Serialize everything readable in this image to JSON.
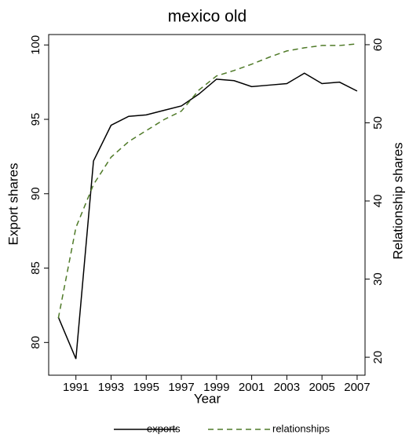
{
  "chart_data": {
    "type": "line",
    "title": "mexico old",
    "x_label": "Year",
    "y_label": "Export shares",
    "y2_label": "Relationship shares",
    "x": [
      1990,
      1991,
      1992,
      1993,
      1994,
      1995,
      1996,
      1997,
      1998,
      1999,
      2000,
      2001,
      2002,
      2003,
      2004,
      2005,
      2006,
      2007
    ],
    "xlim": [
      1989.45,
      2007.45
    ],
    "xticks": [
      1991,
      1993,
      1995,
      1997,
      1999,
      2001,
      2003,
      2005,
      2007
    ],
    "ylim": [
      77.8,
      100.7
    ],
    "yticks": [
      80,
      85,
      90,
      95,
      100
    ],
    "y2lim": [
      17.7,
      61.3
    ],
    "y2ticks": [
      20,
      30,
      40,
      50,
      60
    ],
    "legend": "bottom",
    "series": [
      {
        "name": "exports",
        "color": "#000000",
        "dash": "solid",
        "values": [
          81.7,
          78.9,
          92.2,
          94.6,
          95.2,
          95.3,
          95.6,
          95.9,
          96.7,
          97.7,
          97.6,
          97.2,
          97.3,
          97.4,
          98.1,
          97.4,
          97.5,
          96.9
        ]
      },
      {
        "name": "relationships",
        "color": "#4f7a28",
        "dash": "dashed",
        "axis": "y2",
        "values": [
          25.0,
          36.6,
          42.1,
          45.6,
          47.6,
          49.0,
          50.4,
          51.5,
          54.2,
          56.0,
          56.7,
          57.5,
          58.4,
          59.2,
          59.6,
          59.9,
          59.9,
          60.1
        ]
      }
    ]
  }
}
